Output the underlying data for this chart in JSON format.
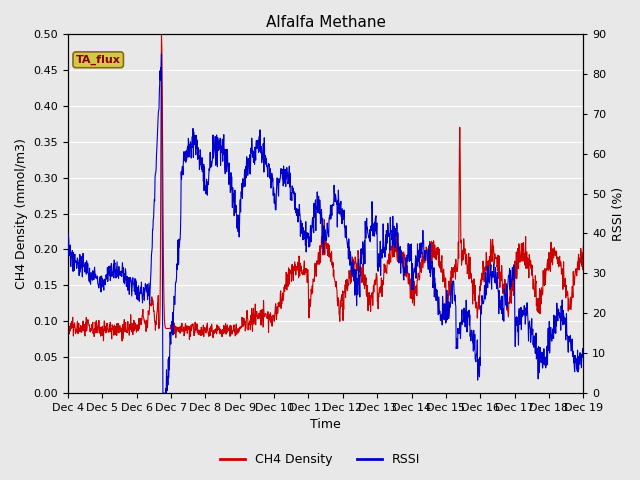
{
  "title": "Alfalfa Methane",
  "xlabel": "Time",
  "ylabel_left": "CH4 Density (mmol/m3)",
  "ylabel_right": "RSSI (%)",
  "ylim_left": [
    0.0,
    0.5
  ],
  "ylim_right": [
    0,
    90
  ],
  "yticks_left": [
    0.0,
    0.05,
    0.1,
    0.15,
    0.2,
    0.25,
    0.3,
    0.35,
    0.4,
    0.45,
    0.5
  ],
  "yticks_right": [
    0,
    10,
    20,
    30,
    40,
    50,
    60,
    70,
    80,
    90
  ],
  "background_color": "#e8e8e8",
  "grid_color": "#ffffff",
  "tag_label": "TA_flux",
  "tag_bg": "#d4c84a",
  "tag_text_color": "#8b0000",
  "tag_edge_color": "#8b6914",
  "line_color_ch4": "#cc0000",
  "line_color_rssi": "#0000cc",
  "legend_ch4": "CH4 Density",
  "legend_rssi": "RSSI",
  "fig_bg": "#e8e8e8",
  "title_fontsize": 11,
  "axis_fontsize": 9,
  "tick_fontsize": 8
}
